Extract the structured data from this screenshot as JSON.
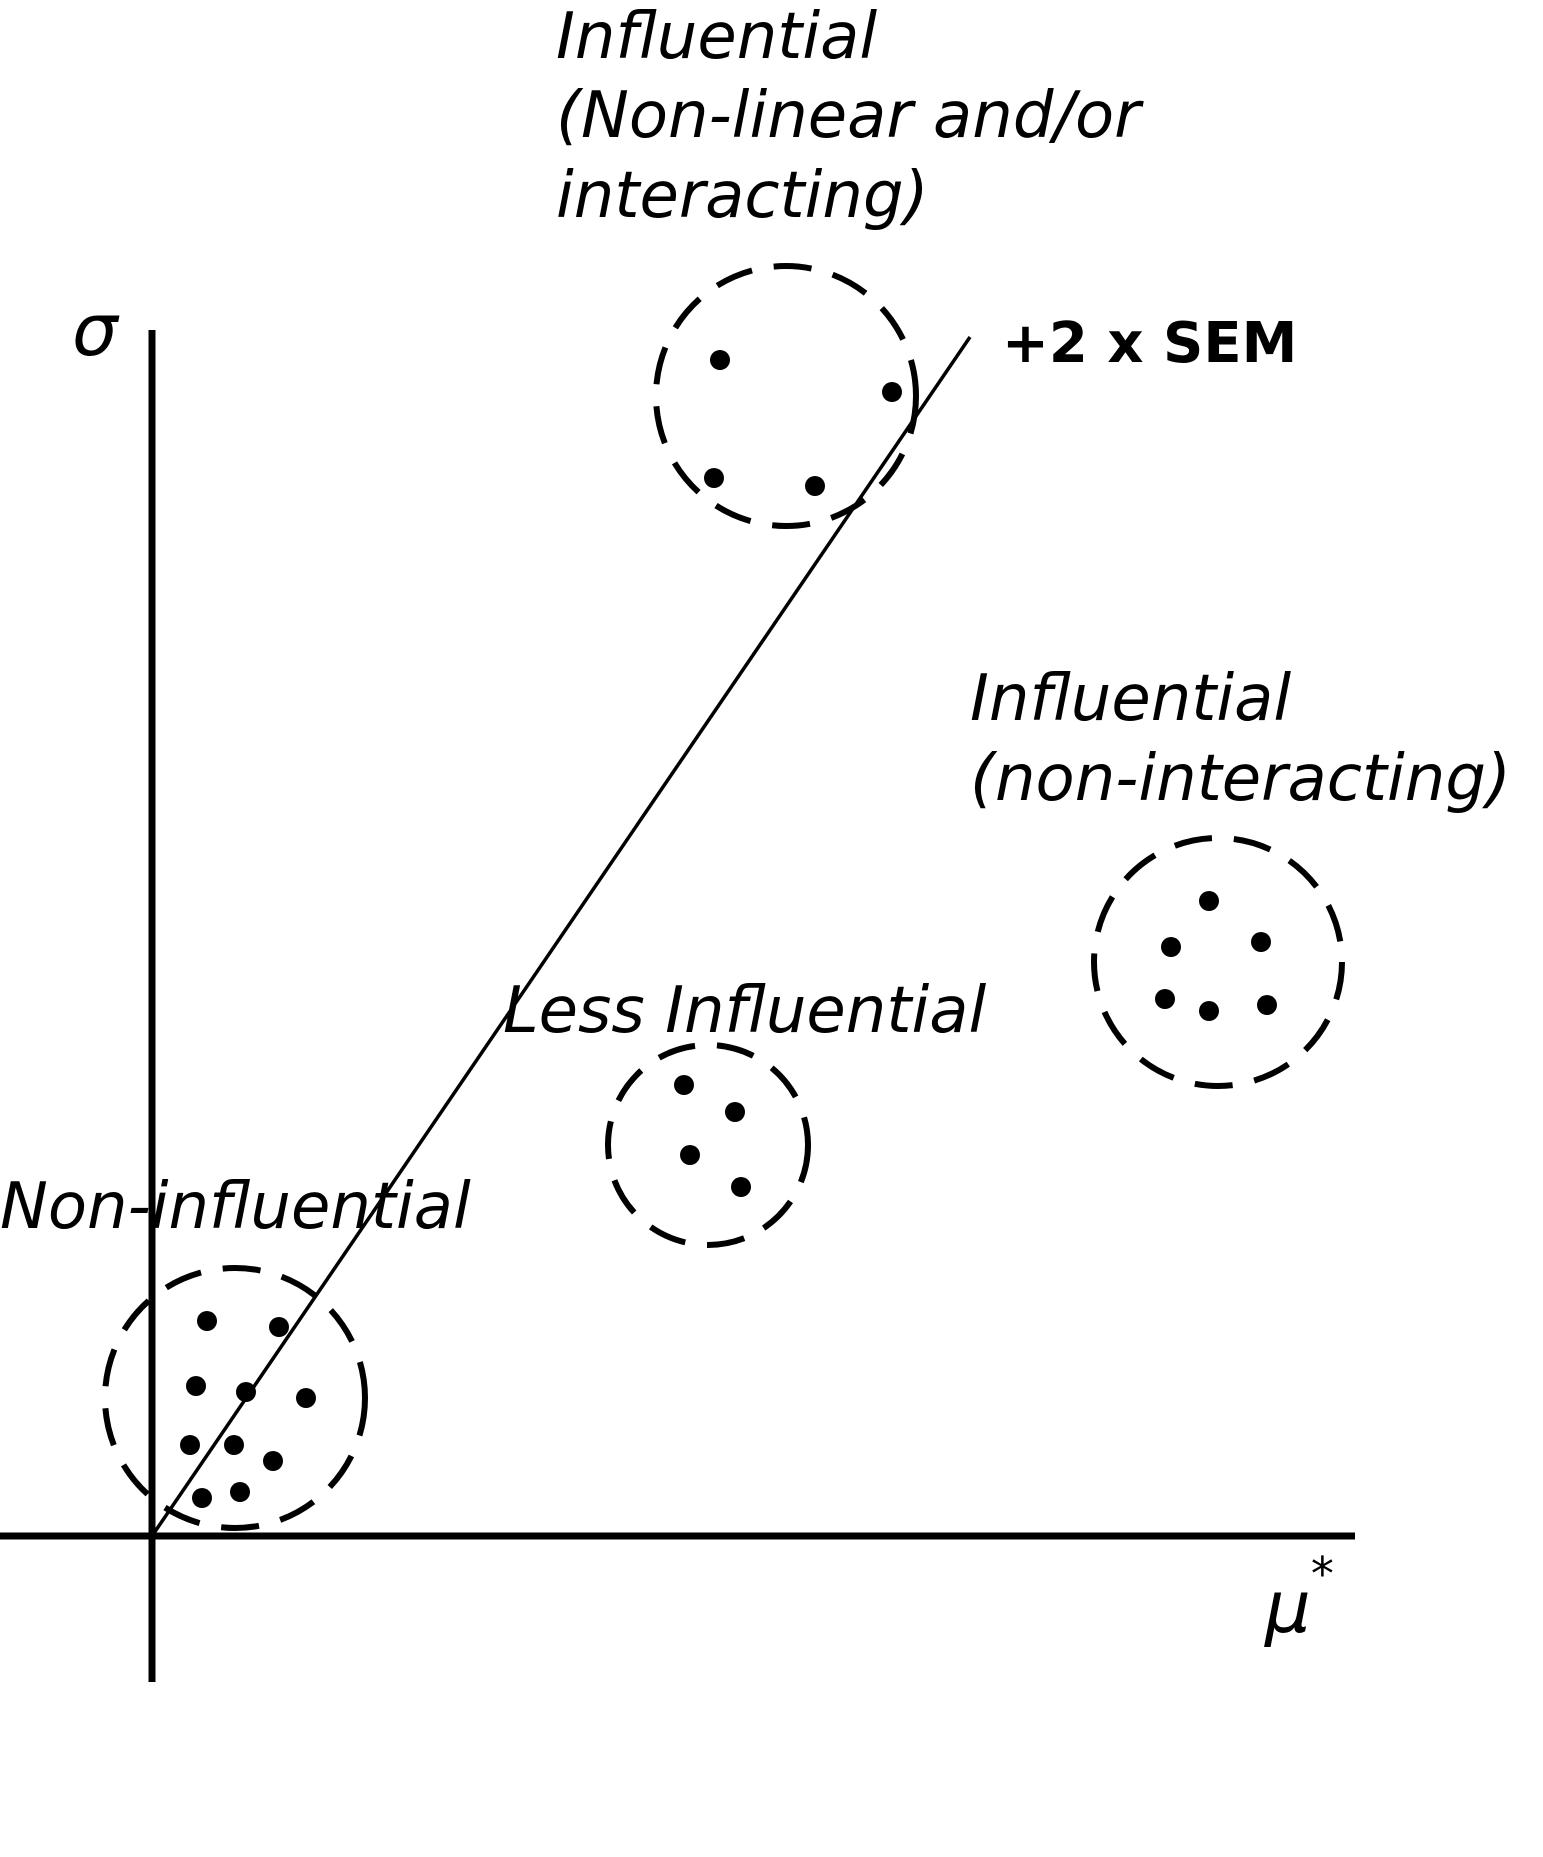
{
  "diagram": {
    "y_axis_symbol": "σ",
    "x_axis_symbol": "μ",
    "x_axis_superscript": "*",
    "threshold_label": "+2 x SEM",
    "groups": {
      "top": {
        "line1": "Influential",
        "line2": "(Non-linear and/or",
        "line3": "interacting)"
      },
      "right": {
        "line1": "Influential",
        "line2": "(non-interacting)"
      },
      "middle": {
        "line1": "Less Influential"
      },
      "bottom": {
        "line1": "Non-influential"
      }
    },
    "colors": {
      "ink": "#000000",
      "background": "#ffffff"
    }
  }
}
